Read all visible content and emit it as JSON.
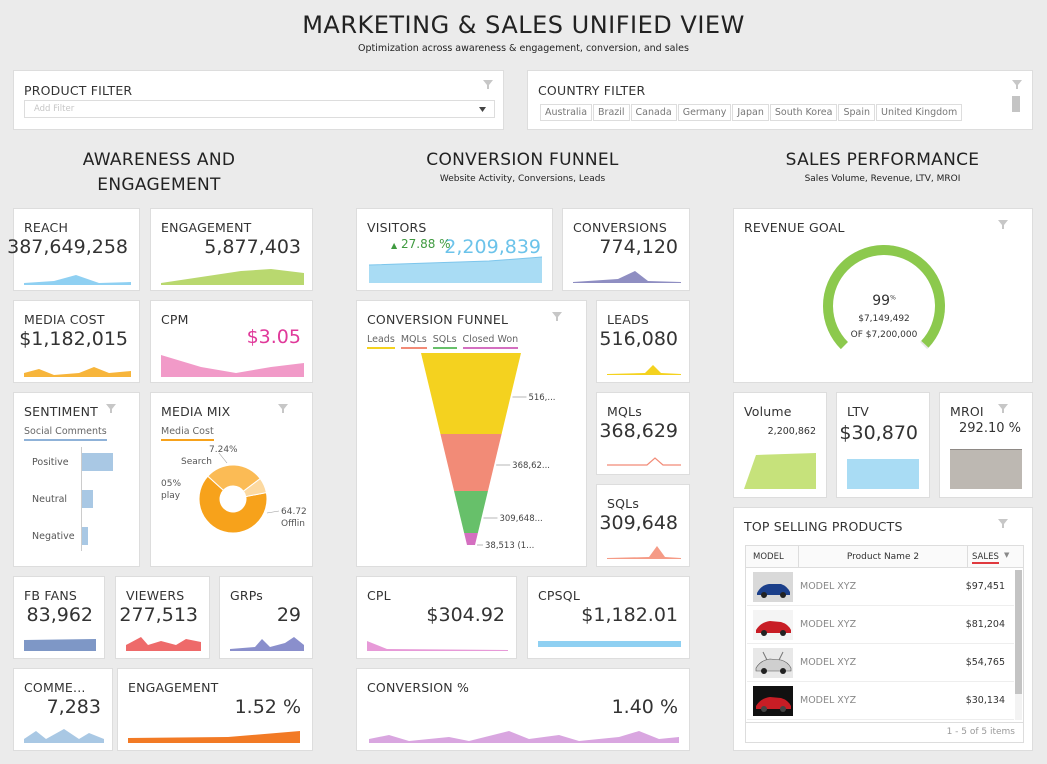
{
  "header": {
    "title": "MARKETING & SALES UNIFIED VIEW",
    "subtitle": "Optimization across awareness & engagement, conversion, and sales"
  },
  "filters": {
    "product": {
      "label": "PRODUCT FILTER",
      "placeholder": "Add Filter"
    },
    "country": {
      "label": "COUNTRY FILTER",
      "items": [
        "Australia",
        "Brazil",
        "Canada",
        "Germany",
        "Japan",
        "South Korea",
        "Spain",
        "United Kingdom"
      ]
    }
  },
  "sections": {
    "awareness": {
      "title_line1": "AWARENESS AND",
      "title_line2": "ENGAGEMENT"
    },
    "conversion": {
      "title": "CONVERSION FUNNEL",
      "subtitle": "Website Activity, Conversions, Leads"
    },
    "sales": {
      "title": "SALES PERFORMANCE",
      "subtitle": "Sales Volume, Revenue, LTV, MROI"
    }
  },
  "kpis": {
    "reach": {
      "label": "REACH",
      "value": "387,649,258"
    },
    "engagement": {
      "label": "ENGAGEMENT",
      "value": "5,877,403"
    },
    "media_cost": {
      "label": "MEDIA COST",
      "value": "$1,182,015"
    },
    "cpm": {
      "label": "CPM",
      "value": "$3.05"
    },
    "fb_fans": {
      "label": "FB FANS",
      "value": "83,962"
    },
    "viewers": {
      "label": "VIEWERS",
      "value": "277,513"
    },
    "grps": {
      "label": "GRPs",
      "value": "29"
    },
    "comments": {
      "label": "COMME...",
      "value": "7,283"
    },
    "engagement_pct": {
      "label": "ENGAGEMENT",
      "value": "1.52 %"
    },
    "visitors": {
      "label": "VISITORS",
      "value": "2,209,839",
      "delta": "27.88 %"
    },
    "conversions": {
      "label": "CONVERSIONS",
      "value": "774,120"
    },
    "leads": {
      "label": "LEADS",
      "value": "516,080"
    },
    "mqls": {
      "label": "MQLs",
      "value": "368,629"
    },
    "sqls": {
      "label": "SQLs",
      "value": "309,648"
    },
    "cpl": {
      "label": "CPL",
      "value": "$304.92"
    },
    "cpsql": {
      "label": "CPSQL",
      "value": "$1,182.01"
    },
    "conversion_pct": {
      "label": "CONVERSION %",
      "value": "1.40 %"
    },
    "volume": {
      "label": "Volume",
      "value": "2,200,862"
    },
    "ltv": {
      "label": "LTV",
      "value": "$30,870"
    },
    "mroi": {
      "label": "MROI",
      "value": "292.10 %"
    }
  },
  "sentiment": {
    "label": "SENTIMENT",
    "legend": "Social Comments",
    "rows": [
      {
        "name": "Positive",
        "value": 1.0
      },
      {
        "name": "Neutral",
        "value": 0.35
      },
      {
        "name": "Negative",
        "value": 0.18
      }
    ]
  },
  "media_mix": {
    "label": "MEDIA MIX",
    "legend": "Media Cost",
    "slice_labels": {
      "search_pct": "7.24%",
      "search_name": "Search",
      "display_pct": "05%",
      "display_name": "play",
      "offline_pct": "64.72",
      "offline_name": "Offlin"
    },
    "slices": [
      {
        "name": "Offline",
        "pct": 64.72,
        "color": "#f7a21b"
      },
      {
        "name": "Display",
        "pct": 28.04,
        "color": "#fbbb55"
      },
      {
        "name": "Search",
        "pct": 7.24,
        "color": "#fcd9a0"
      }
    ]
  },
  "funnel": {
    "label": "CONVERSION FUNNEL",
    "legend": [
      "Leads",
      "MQLs",
      "SQLs",
      "Closed Won"
    ],
    "legend_colors": [
      "#f4d21f",
      "#f28b77",
      "#67c06a",
      "#d46fc0"
    ],
    "stages": [
      {
        "name": "Leads",
        "label": "516,...",
        "value": 516080
      },
      {
        "name": "MQLs",
        "label": "368,62...",
        "value": 368629
      },
      {
        "name": "SQLs",
        "label": "309,648...",
        "value": 309648
      },
      {
        "name": "Closed Won",
        "label": "38,513 (1...",
        "value": 38513
      }
    ]
  },
  "revenue_goal": {
    "label": "REVENUE GOAL",
    "pct": "99",
    "pct_sign": "%",
    "amount": "$7,149,492",
    "of_text": "OF $7,200,000",
    "fraction": 0.993
  },
  "top_products": {
    "label": "TOP SELLING PRODUCTS",
    "headers": {
      "model": "MODEL",
      "name": "Product Name 2",
      "sales": "SALES"
    },
    "rows": [
      {
        "name": "MODEL XYZ",
        "sales": "$97,451",
        "car_color": "#1b3f8a"
      },
      {
        "name": "MODEL XYZ",
        "sales": "$81,204",
        "car_color": "#c81d25"
      },
      {
        "name": "MODEL XYZ",
        "sales": "$54,765",
        "car_color": "#cfcfcf"
      },
      {
        "name": "MODEL XYZ",
        "sales": "$30,134",
        "car_color": "#c81d25"
      }
    ],
    "pager": "1 - 5 of 5 items"
  }
}
